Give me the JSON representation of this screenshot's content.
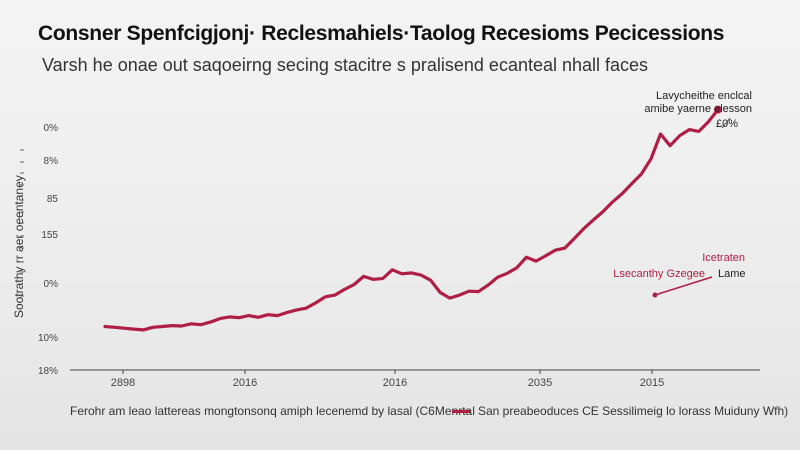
{
  "chart_data": {
    "type": "line",
    "title": "Consner Spenfcigjonj· Reclesmahiels·Taolog Recesioms  Pecicessions",
    "subtitle": "Varsh he onae out saqoeirng secing stacitre s pralisend ecanteal nhall faces",
    "ylabel": "Sootrathy rr aer oeentaney",
    "y_ticks": [
      "0%",
      "0%",
      "8%",
      "85",
      "155",
      "0%",
      "10%",
      "18%"
    ],
    "x_ticks": [
      "2898",
      "2016",
      "2016",
      "2035",
      "2015"
    ],
    "series": [
      {
        "values": [
          10,
          9.8,
          9.6,
          9.4,
          9.2,
          9.8,
          10,
          10.2,
          10.1,
          10.6,
          10.4,
          11,
          11.8,
          12.2,
          12,
          12.5,
          12.1,
          12.7,
          12.5,
          13.2,
          13.8,
          14.2,
          15.4,
          16.8,
          17.2,
          18.5,
          19.6,
          21.5,
          20.8,
          21,
          23,
          22.1,
          22.3,
          21.8,
          20.6,
          17.8,
          16.5,
          17.2,
          18.1,
          18,
          19.5,
          21.3,
          22.2,
          23.5,
          25.9,
          25,
          26.2,
          27.5,
          28,
          30.2,
          32.5,
          34.5,
          36.4,
          38.6,
          40.5,
          42.8,
          45,
          48.5,
          54.2,
          51.5,
          53.8,
          55.2,
          54.8,
          57,
          59.8
        ]
      }
    ],
    "annotations": [
      {
        "text": "Lavycheithe enclcal"
      },
      {
        "text": "amibe yaerne elesson"
      },
      {
        "text": "£0%"
      },
      {
        "text": "Icetraten"
      },
      {
        "text": "Lsecanthy Gzegee"
      },
      {
        "text": "Lame"
      }
    ],
    "legend": {
      "position": "bottom",
      "label": "San preabeoduces CE Sessilimeig lo lorass Muiduny Wfh)"
    },
    "footer": "Ferohr am leao lattereas mongtonsonq amiph lecenemd by lasal (C6Menrtal",
    "colors": {
      "line": "#b01e44",
      "axis": "#444444",
      "grid": "#d8d8d8"
    },
    "ylim": [
      0,
      62
    ],
    "grid": false
  }
}
